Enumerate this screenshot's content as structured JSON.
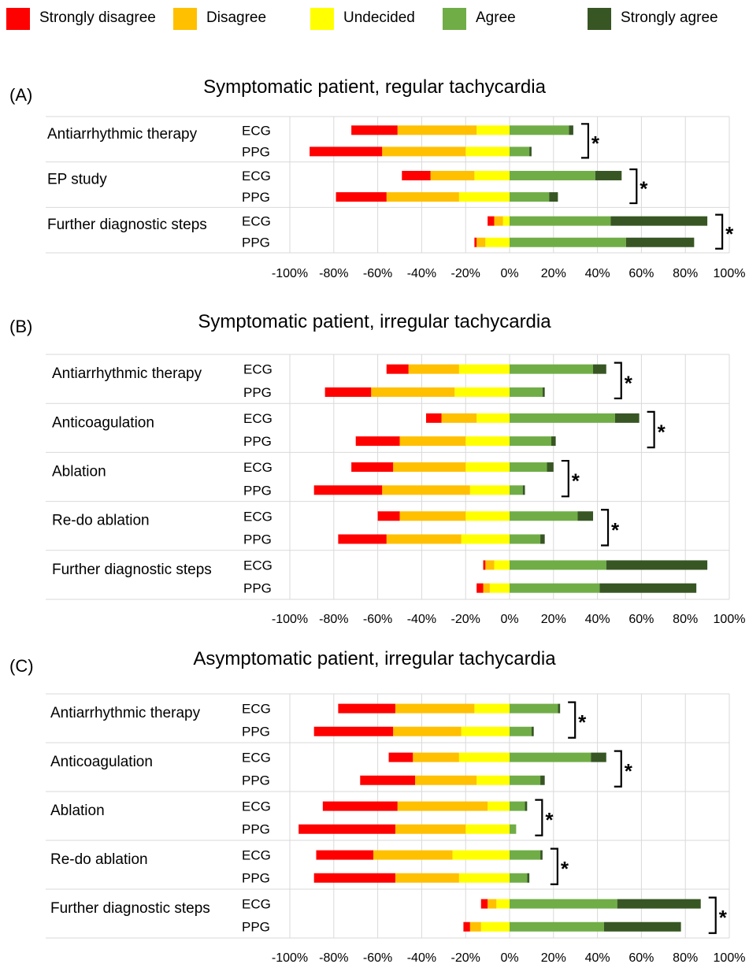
{
  "legend": [
    {
      "label": "Strongly disagree",
      "color": "#ff0000"
    },
    {
      "label": "Disagree",
      "color": "#ffc000"
    },
    {
      "label": "Undecided",
      "color": "#ffff00"
    },
    {
      "label": "Agree",
      "color": "#70ad47"
    },
    {
      "label": "Strongly agree",
      "color": "#375623"
    }
  ],
  "chart_data": [
    {
      "type": "bar",
      "letter": "(A)",
      "title": "Symptomatic patient, regular tachycardia",
      "xlim": [
        -100,
        100
      ],
      "xticks": [
        "-100%",
        "-80%",
        "-60%",
        "-40%",
        "-20%",
        "0%",
        "20%",
        "40%",
        "60%",
        "80%",
        "100%"
      ],
      "grid": true,
      "categories": [
        {
          "label": "Antiarrhythmic therapy",
          "significant": "*",
          "rows": [
            {
              "label": "ECG",
              "values": [
                -21,
                -36,
                -15,
                27,
                2
              ]
            },
            {
              "label": "PPG",
              "values": [
                -33,
                -38,
                -20,
                9,
                1
              ]
            }
          ]
        },
        {
          "label": "EP study",
          "significant": "*",
          "rows": [
            {
              "label": "ECG",
              "values": [
                -13,
                -20,
                -16,
                39,
                12
              ]
            },
            {
              "label": "PPG",
              "values": [
                -23,
                -33,
                -23,
                18,
                4
              ]
            }
          ]
        },
        {
          "label": "Further diagnostic steps",
          "significant": "*",
          "rows": [
            {
              "label": "ECG",
              "values": [
                -3,
                -4,
                -3,
                46,
                44
              ]
            },
            {
              "label": "PPG",
              "values": [
                -1,
                -4,
                -11,
                53,
                31
              ]
            }
          ]
        }
      ]
    },
    {
      "type": "bar",
      "letter": "(B)",
      "title": "Symptomatic patient, irregular tachycardia",
      "xlim": [
        -100,
        100
      ],
      "xticks": [
        "-100%",
        "-80%",
        "-60%",
        "-40%",
        "-20%",
        "0%",
        "20%",
        "40%",
        "60%",
        "80%",
        "100%"
      ],
      "grid": true,
      "categories": [
        {
          "label": "Antiarrhythmic therapy",
          "significant": "*",
          "rows": [
            {
              "label": "ECG",
              "values": [
                -10,
                -23,
                -23,
                38,
                6
              ]
            },
            {
              "label": "PPG",
              "values": [
                -21,
                -38,
                -25,
                15,
                1
              ]
            }
          ]
        },
        {
          "label": "Anticoagulation",
          "significant": "*",
          "rows": [
            {
              "label": "ECG",
              "values": [
                -7,
                -16,
                -15,
                48,
                11
              ]
            },
            {
              "label": "PPG",
              "values": [
                -20,
                -30,
                -20,
                19,
                2
              ]
            }
          ]
        },
        {
          "label": "Ablation",
          "significant": "*",
          "rows": [
            {
              "label": "ECG",
              "values": [
                -19,
                -33,
                -20,
                17,
                3
              ]
            },
            {
              "label": "PPG",
              "values": [
                -31,
                -40,
                -18,
                6,
                1
              ]
            }
          ]
        },
        {
          "label": "Re-do ablation",
          "significant": "*",
          "rows": [
            {
              "label": "ECG",
              "values": [
                -10,
                -30,
                -20,
                31,
                7
              ]
            },
            {
              "label": "PPG",
              "values": [
                -22,
                -34,
                -22,
                14,
                2
              ]
            }
          ]
        },
        {
          "label": "Further diagnostic steps",
          "significant": "",
          "rows": [
            {
              "label": "ECG",
              "values": [
                -1,
                -4,
                -7,
                44,
                46
              ]
            },
            {
              "label": "PPG",
              "values": [
                -3,
                -3,
                -9,
                41,
                44
              ]
            }
          ]
        }
      ]
    },
    {
      "type": "bar",
      "letter": "(C)",
      "title": "Asymptomatic patient, irregular tachycardia",
      "xlim": [
        -100,
        100
      ],
      "xticks": [
        "-100%",
        "-80%",
        "-60%",
        "-40%",
        "-20%",
        "0%",
        "20%",
        "40%",
        "60%",
        "80%",
        "100%"
      ],
      "grid": true,
      "categories": [
        {
          "label": "Antiarrhythmic therapy",
          "significant": "*",
          "rows": [
            {
              "label": "ECG",
              "values": [
                -26,
                -36,
                -16,
                22,
                1
              ]
            },
            {
              "label": "PPG",
              "values": [
                -36,
                -31,
                -22,
                10,
                1
              ]
            }
          ]
        },
        {
          "label": "Anticoagulation",
          "significant": "*",
          "rows": [
            {
              "label": "ECG",
              "values": [
                -11,
                -21,
                -23,
                37,
                7
              ]
            },
            {
              "label": "PPG",
              "values": [
                -25,
                -28,
                -15,
                14,
                2
              ]
            }
          ]
        },
        {
          "label": "Ablation",
          "significant": "*",
          "rows": [
            {
              "label": "ECG",
              "values": [
                -34,
                -41,
                -10,
                7,
                1
              ]
            },
            {
              "label": "PPG",
              "values": [
                -44,
                -32,
                -20,
                3,
                0
              ]
            }
          ]
        },
        {
          "label": "Re-do ablation",
          "significant": "*",
          "rows": [
            {
              "label": "ECG",
              "values": [
                -26,
                -36,
                -26,
                14,
                1
              ]
            },
            {
              "label": "PPG",
              "values": [
                -37,
                -29,
                -23,
                8,
                1
              ]
            }
          ]
        },
        {
          "label": "Further diagnostic steps",
          "significant": "*",
          "rows": [
            {
              "label": "ECG",
              "values": [
                -3,
                -4,
                -6,
                49,
                38
              ]
            },
            {
              "label": "PPG",
              "values": [
                -3,
                -5,
                -13,
                43,
                35
              ]
            }
          ]
        }
      ]
    }
  ]
}
